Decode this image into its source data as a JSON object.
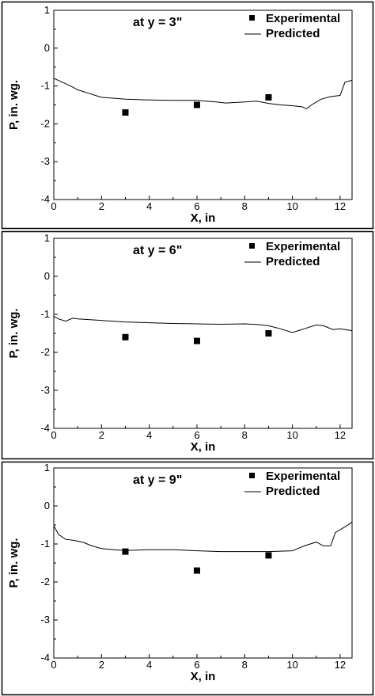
{
  "chart_data": [
    {
      "type": "line",
      "title": "at y = 3\"",
      "xlabel": "X, in",
      "ylabel": "P, in. wg.",
      "xlim": [
        0,
        12.5
      ],
      "ylim": [
        -4,
        1
      ],
      "xticks": [
        0,
        2,
        4,
        6,
        8,
        10,
        12
      ],
      "yticks": [
        1,
        0,
        -1,
        -2,
        -3,
        -4
      ],
      "grid": false,
      "legend_position": "top-right",
      "series": [
        {
          "name": "Experimental",
          "kind": "scatter",
          "marker": "square",
          "color": "#000000",
          "x": [
            3,
            6,
            9
          ],
          "y": [
            -1.7,
            -1.5,
            -1.3
          ]
        },
        {
          "name": "Predicted",
          "kind": "line",
          "color": "#000000",
          "x": [
            0,
            0.3,
            0.7,
            1.0,
            1.5,
            2.0,
            3.0,
            4.0,
            5.0,
            6.0,
            6.8,
            7.2,
            8.0,
            8.5,
            9.0,
            9.5,
            10.0,
            10.4,
            10.6,
            10.8,
            11.2,
            11.6,
            12.0,
            12.2,
            12.5
          ],
          "y": [
            -0.8,
            -0.88,
            -1.0,
            -1.1,
            -1.2,
            -1.3,
            -1.35,
            -1.37,
            -1.38,
            -1.38,
            -1.42,
            -1.45,
            -1.42,
            -1.4,
            -1.46,
            -1.5,
            -1.52,
            -1.55,
            -1.6,
            -1.5,
            -1.35,
            -1.28,
            -1.25,
            -0.9,
            -0.85
          ]
        }
      ]
    },
    {
      "type": "line",
      "title": "at y = 6\"",
      "xlabel": "X, in",
      "ylabel": "P, in. wg.",
      "xlim": [
        0,
        12.5
      ],
      "ylim": [
        -4,
        1
      ],
      "xticks": [
        0,
        2,
        4,
        6,
        8,
        10,
        12
      ],
      "yticks": [
        1,
        0,
        -1,
        -2,
        -3,
        -4
      ],
      "grid": false,
      "legend_position": "top-right",
      "series": [
        {
          "name": "Experimental",
          "kind": "scatter",
          "marker": "square",
          "color": "#000000",
          "x": [
            3,
            6,
            9
          ],
          "y": [
            -1.6,
            -1.7,
            -1.5
          ]
        },
        {
          "name": "Predicted",
          "kind": "line",
          "color": "#000000",
          "x": [
            0,
            0.2,
            0.5,
            0.8,
            1.0,
            2.0,
            3.0,
            4.0,
            5.0,
            6.0,
            7.0,
            8.0,
            8.6,
            9.0,
            9.5,
            10.0,
            10.5,
            11.0,
            11.3,
            11.7,
            12.0,
            12.5
          ],
          "y": [
            -1.05,
            -1.12,
            -1.18,
            -1.1,
            -1.12,
            -1.16,
            -1.2,
            -1.22,
            -1.24,
            -1.25,
            -1.26,
            -1.25,
            -1.27,
            -1.3,
            -1.38,
            -1.48,
            -1.38,
            -1.28,
            -1.3,
            -1.4,
            -1.38,
            -1.43
          ]
        }
      ]
    },
    {
      "type": "line",
      "title": "at y = 9\"",
      "xlabel": "X, in",
      "ylabel": "P, in. wg.",
      "xlim": [
        0,
        12.5
      ],
      "ylim": [
        -4,
        1
      ],
      "xticks": [
        0,
        2,
        4,
        6,
        8,
        10,
        12
      ],
      "yticks": [
        1,
        0,
        -1,
        -2,
        -3,
        -4
      ],
      "grid": false,
      "legend_position": "top-right",
      "series": [
        {
          "name": "Experimental",
          "kind": "scatter",
          "marker": "square",
          "color": "#000000",
          "x": [
            3,
            6,
            9
          ],
          "y": [
            -1.2,
            -1.7,
            -1.3
          ]
        },
        {
          "name": "Predicted",
          "kind": "line",
          "color": "#000000",
          "x": [
            0,
            0.2,
            0.5,
            0.8,
            1.2,
            1.6,
            2.0,
            2.5,
            3.0,
            4.0,
            5.0,
            6.0,
            7.0,
            8.0,
            9.0,
            10.0,
            10.5,
            11.0,
            11.3,
            11.6,
            11.8,
            12.2,
            12.5
          ],
          "y": [
            -0.52,
            -0.75,
            -0.88,
            -0.9,
            -0.95,
            -1.05,
            -1.12,
            -1.15,
            -1.17,
            -1.15,
            -1.15,
            -1.18,
            -1.2,
            -1.2,
            -1.2,
            -1.18,
            -1.05,
            -0.95,
            -1.05,
            -1.05,
            -0.7,
            -0.55,
            -0.43
          ]
        }
      ]
    }
  ]
}
